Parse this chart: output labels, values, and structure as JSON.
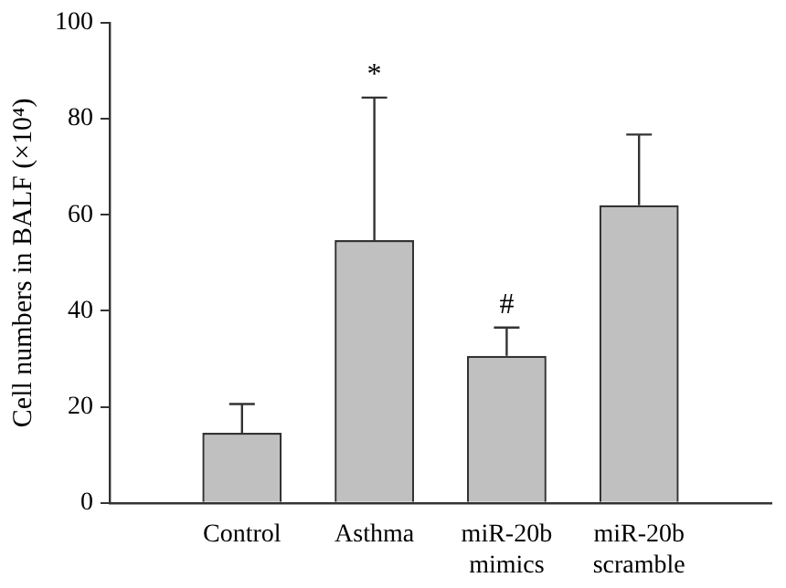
{
  "chart_data": {
    "type": "bar",
    "ylabel": "Cell numbers in BALF (×10⁴)",
    "categories": [
      "Control",
      "Asthma",
      "miR-20b mimics",
      "miR-20b scramble"
    ],
    "values": [
      14.6,
      54.7,
      30.6,
      62
    ],
    "errors": [
      [
        14.6,
        20.6
      ],
      [
        54.7,
        84.4
      ],
      [
        30.6,
        36.5
      ],
      [
        62,
        76.7
      ]
    ],
    "color": "#c0c0c0",
    "ylim": [
      0,
      100
    ],
    "yticks": [
      0,
      20,
      40,
      60,
      80,
      100
    ],
    "grid": false,
    "legend": false,
    "annotations": [
      {
        "text": "*",
        "x": "Asthma",
        "y": 84.4
      },
      {
        "text": "#",
        "x": "miR-20b mimics",
        "y": 36.5
      }
    ]
  }
}
